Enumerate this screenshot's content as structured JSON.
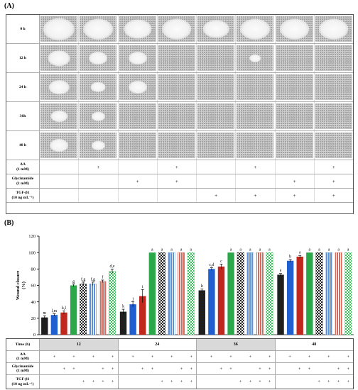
{
  "panel_a": {
    "label": "(A)",
    "time_rows": [
      "0 h",
      "12 h",
      "24 h",
      "36h",
      "48 h"
    ],
    "wound_fraction": [
      [
        0.85,
        0.8,
        0.75,
        0.8,
        0.7,
        0.8,
        0.8,
        0.8
      ],
      [
        0.6,
        0.5,
        0.5,
        0.0,
        0.0,
        0.3,
        0.0,
        0.0
      ],
      [
        0.55,
        0.4,
        0.5,
        0.0,
        0.0,
        0.0,
        0.0,
        0.0
      ],
      [
        0.45,
        0.35,
        0.0,
        0.0,
        0.0,
        0.0,
        0.0,
        0.0
      ],
      [
        0.5,
        0.35,
        0.0,
        0.0,
        0.0,
        0.0,
        0.0,
        0.0
      ]
    ],
    "treatments": [
      {
        "label": "AA\n(1 mM)",
        "marks": [
          "",
          "+",
          "",
          "+",
          "",
          "+",
          "",
          "+"
        ]
      },
      {
        "label": "Glycinamide\n(1 mM)",
        "marks": [
          "",
          "",
          "+",
          "+",
          "",
          "",
          "+",
          "+"
        ]
      },
      {
        "label": "TGF-β1\n(10 ng mL⁻¹)",
        "marks": [
          "",
          "",
          "",
          "",
          "+",
          "+",
          "+",
          "+"
        ]
      }
    ]
  },
  "panel_b": {
    "label": "(B)",
    "time_label": "Time (h)",
    "times": [
      "12",
      "24",
      "36",
      "48"
    ],
    "treatments": [
      {
        "label": "AA\n(1 mM)",
        "marks": [
          "",
          "+",
          "",
          "+",
          "",
          "+",
          "",
          "+"
        ]
      },
      {
        "label": "Glycinamide\n(1 mM)",
        "marks": [
          "",
          "",
          "+",
          "+",
          "",
          "",
          "+",
          "+"
        ]
      },
      {
        "label": "TGF-β1\n(10 ng mL⁻¹)",
        "marks": [
          "",
          "",
          "",
          "",
          "+",
          "+",
          "+",
          "+"
        ]
      }
    ]
  },
  "chart_data": {
    "type": "bar",
    "ylabel": "Wound closure\n(%)",
    "ylim": [
      0,
      120
    ],
    "yticks": [
      0,
      20,
      40,
      60,
      80,
      100,
      120
    ],
    "categories": [
      "12",
      "24",
      "36",
      "48"
    ],
    "series": [
      {
        "color": "#1f1f1f",
        "pattern": "solid",
        "values": [
          21,
          28,
          54,
          73
        ],
        "errors": [
          2,
          3,
          1.5,
          1.5
        ],
        "letters": [
          "m",
          "k",
          "h",
          "e"
        ]
      },
      {
        "color": "#1f5fcf",
        "pattern": "solid",
        "values": [
          24,
          37,
          80,
          90
        ],
        "errors": [
          1.5,
          3,
          1.5,
          1.5
        ],
        "letters": [
          "l,m",
          "j",
          "c,d",
          "b"
        ]
      },
      {
        "color": "#c0281e",
        "pattern": "solid",
        "values": [
          27,
          47,
          83,
          95
        ],
        "errors": [
          2,
          8,
          3,
          1.5
        ],
        "letters": [
          "k,l",
          "i",
          "c",
          "a"
        ]
      },
      {
        "color": "#2aa84a",
        "pattern": "solid",
        "values": [
          60,
          100,
          100,
          100
        ],
        "errors": [
          1.5,
          0,
          0,
          0
        ],
        "letters": [
          "g",
          "a",
          "a",
          "a"
        ]
      },
      {
        "color": "#1f1f1f",
        "pattern": "checker",
        "values": [
          62,
          100,
          100,
          100
        ],
        "errors": [
          2,
          0,
          0,
          0
        ],
        "letters": [
          "f,g",
          "a",
          "a",
          "a"
        ]
      },
      {
        "color": "#5b8fd6",
        "pattern": "stripe",
        "values": [
          62,
          100,
          100,
          100
        ],
        "errors": [
          2,
          0,
          0,
          0
        ],
        "letters": [
          "f,g",
          "a",
          "a",
          "a"
        ]
      },
      {
        "color": "#d46a5e",
        "pattern": "stripe",
        "values": [
          65,
          100,
          100,
          100
        ],
        "errors": [
          1.5,
          0,
          0,
          0
        ],
        "letters": [
          "f",
          "a",
          "a",
          "a"
        ]
      },
      {
        "color": "#3cbf5e",
        "pattern": "checker",
        "values": [
          77,
          100,
          100,
          100
        ],
        "errors": [
          3,
          0,
          0,
          0
        ],
        "letters": [
          "d,e",
          "a",
          "a",
          "a"
        ]
      }
    ]
  }
}
